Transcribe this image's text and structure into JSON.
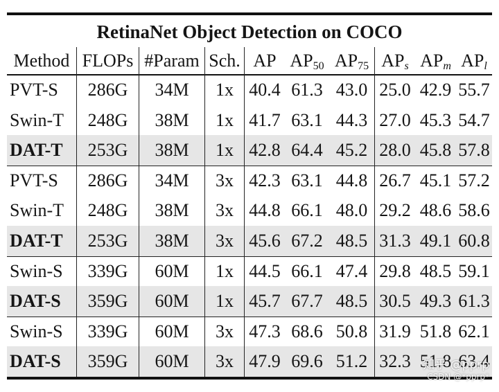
{
  "table": {
    "caption": "RetinaNet Object Detection on COCO",
    "headers": {
      "method": "Method",
      "flops": "FLOPs",
      "param": "#Param",
      "sch": "Sch.",
      "ap": "AP",
      "ap50": {
        "base": "AP",
        "sub": "50"
      },
      "ap75": {
        "base": "AP",
        "sub": "75"
      },
      "aps": {
        "base": "AP",
        "sub": "s"
      },
      "apm": {
        "base": "AP",
        "sub": "m"
      },
      "apl": {
        "base": "AP",
        "sub": "l"
      }
    },
    "rows": [
      {
        "method": "PVT-S",
        "flops": "286G",
        "param": "34M",
        "sch": "1x",
        "ap": "40.4",
        "ap50": "61.3",
        "ap75": "43.0",
        "aps": "25.0",
        "apm": "42.9",
        "apl": "55.7",
        "highlight": false
      },
      {
        "method": "Swin-T",
        "flops": "248G",
        "param": "38M",
        "sch": "1x",
        "ap": "41.7",
        "ap50": "63.1",
        "ap75": "44.3",
        "aps": "27.0",
        "apm": "45.3",
        "apl": "54.7",
        "highlight": false
      },
      {
        "method": "DAT-T",
        "flops": "253G",
        "param": "38M",
        "sch": "1x",
        "ap": "42.8",
        "ap50": "64.4",
        "ap75": "45.2",
        "aps": "28.0",
        "apm": "45.8",
        "apl": "57.8",
        "highlight": true
      },
      {
        "method": "PVT-S",
        "flops": "286G",
        "param": "34M",
        "sch": "3x",
        "ap": "42.3",
        "ap50": "63.1",
        "ap75": "44.8",
        "aps": "26.7",
        "apm": "45.1",
        "apl": "57.2",
        "highlight": false
      },
      {
        "method": "Swin-T",
        "flops": "248G",
        "param": "38M",
        "sch": "3x",
        "ap": "44.8",
        "ap50": "66.1",
        "ap75": "48.0",
        "aps": "29.2",
        "apm": "48.6",
        "apl": "58.6",
        "highlight": false
      },
      {
        "method": "DAT-T",
        "flops": "253G",
        "param": "38M",
        "sch": "3x",
        "ap": "45.6",
        "ap50": "67.2",
        "ap75": "48.5",
        "aps": "31.3",
        "apm": "49.1",
        "apl": "60.8",
        "highlight": true
      },
      {
        "method": "Swin-S",
        "flops": "339G",
        "param": "60M",
        "sch": "1x",
        "ap": "44.5",
        "ap50": "66.1",
        "ap75": "47.4",
        "aps": "29.8",
        "apm": "48.5",
        "apl": "59.1",
        "highlight": false
      },
      {
        "method": "DAT-S",
        "flops": "359G",
        "param": "60M",
        "sch": "1x",
        "ap": "45.7",
        "ap50": "67.7",
        "ap75": "48.5",
        "aps": "30.5",
        "apm": "49.3",
        "apl": "61.3",
        "highlight": true
      },
      {
        "method": "Swin-S",
        "flops": "339G",
        "param": "60M",
        "sch": "3x",
        "ap": "47.3",
        "ap50": "68.6",
        "ap75": "50.8",
        "aps": "31.9",
        "apm": "51.8",
        "apl": "62.1",
        "highlight": false
      },
      {
        "method": "DAT-S",
        "flops": "359G",
        "param": "60M",
        "sch": "3x",
        "ap": "47.9",
        "ap50": "69.6",
        "ap75": "51.2",
        "aps": "32.3",
        "apm": "51.8",
        "apl": "63.4",
        "highlight": true
      }
    ]
  },
  "watermark": {
    "line1": "知乎 @pprp",
    "line2": "CSDN @*pprp*"
  }
}
